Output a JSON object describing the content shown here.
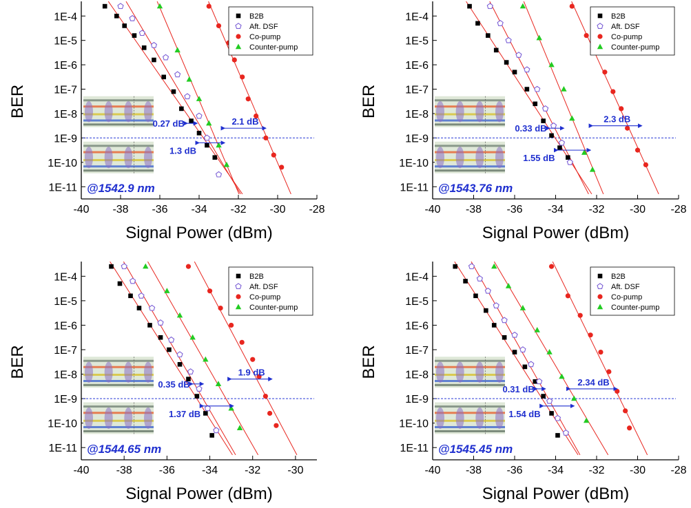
{
  "colors": {
    "b2b": "#000000",
    "dsf": "#7b5fd6",
    "co_pump": "#e8261f",
    "counter_pump": "#22cc22",
    "fit_line": "#e8261f",
    "threshold_line": "#2a3bd6",
    "annotation": "#1f2fcf"
  },
  "chart_data": [
    {
      "type": "scatter",
      "xlabel": "Signal Power (dBm)",
      "ylabel": "BER",
      "xlim": [
        -40,
        -28
      ],
      "x_ticks": [
        "-40",
        "-38",
        "-36",
        "-34",
        "-32",
        "-30",
        "-28"
      ],
      "y_log_scale": true,
      "ylim_log10": [
        -11.5,
        -3.4
      ],
      "y_ticks": [
        "1E-4",
        "1E-5",
        "1E-6",
        "1E-7",
        "1E-8",
        "1E-9",
        "1E-10",
        "1E-11"
      ],
      "threshold_ber": "1E-9",
      "wavelength_label": "@1542.9 nm",
      "legend_position": "top-right",
      "annotations": [
        {
          "text": "0.27 dB",
          "x1": -34.6,
          "x2": -34.1,
          "y": -8.4
        },
        {
          "text": "2.1 dB",
          "x1": -32.7,
          "x2": -30.6,
          "y": -8.6
        },
        {
          "text": "1.3 dB",
          "x1": -34.0,
          "x2": -32.7,
          "y": -9.2
        }
      ],
      "series": [
        {
          "name": "B2B",
          "marker": "square",
          "x": [
            -38.8,
            -38.2,
            -37.8,
            -37.3,
            -36.8,
            -36.3,
            -35.8,
            -35.3,
            -34.9,
            -34.4,
            -34.0,
            -33.6,
            -33.2
          ],
          "y": [
            -3.6,
            -4.0,
            -4.4,
            -4.8,
            -5.3,
            -5.8,
            -6.5,
            -7.1,
            -7.8,
            -8.3,
            -8.8,
            -9.3,
            -9.8
          ]
        },
        {
          "name": "Aft. DSF",
          "marker": "pentagon-open",
          "x": [
            -38.0,
            -37.4,
            -36.9,
            -36.3,
            -35.7,
            -35.1,
            -34.6,
            -34.0,
            -33.6,
            -33.0
          ],
          "y": [
            -3.6,
            -4.1,
            -4.7,
            -5.2,
            -5.7,
            -6.4,
            -7.3,
            -8.1,
            -9.0,
            -10.5
          ]
        },
        {
          "name": "Co-pump",
          "marker": "circle",
          "x": [
            -33.5,
            -33.0,
            -32.5,
            -32.2,
            -31.8,
            -31.5,
            -31.1,
            -30.6,
            -30.2,
            -29.8
          ],
          "y": [
            -3.6,
            -4.4,
            -5.1,
            -5.8,
            -6.5,
            -7.4,
            -8.1,
            -9.0,
            -9.7,
            -10.2
          ]
        },
        {
          "name": "Counter-pump",
          "marker": "triangle",
          "x": [
            -36.0,
            -35.1,
            -34.5,
            -34.0,
            -33.5,
            -33.0,
            -32.6
          ],
          "y": [
            -3.6,
            -5.4,
            -6.6,
            -7.4,
            -8.4,
            -9.3,
            -10.1
          ]
        }
      ]
    },
    {
      "type": "scatter",
      "xlabel": "Signal Power (dBm)",
      "ylabel": "BER",
      "xlim": [
        -40,
        -28
      ],
      "x_ticks": [
        "-40",
        "-38",
        "-36",
        "-34",
        "-32",
        "-30",
        "-28"
      ],
      "y_log_scale": true,
      "ylim_log10": [
        -11.5,
        -3.4
      ],
      "y_ticks": [
        "1E-4",
        "1E-5",
        "1E-6",
        "1E-7",
        "1E-8",
        "1E-9",
        "1E-10",
        "1E-11"
      ],
      "threshold_ber": "1E-9",
      "wavelength_label": "@1543.76 nm",
      "legend_position": "top-right",
      "annotations": [
        {
          "text": "0.33 dB",
          "x1": -34.3,
          "x2": -33.6,
          "y": -8.6
        },
        {
          "text": "2.3 dB",
          "x1": -32.2,
          "x2": -29.8,
          "y": -8.5
        },
        {
          "text": "1.55 dB",
          "x1": -33.9,
          "x2": -32.3,
          "y": -9.5
        }
      ],
      "series": [
        {
          "name": "B2B",
          "marker": "square",
          "x": [
            -38.2,
            -37.8,
            -37.3,
            -36.9,
            -36.4,
            -36.0,
            -35.4,
            -35.0,
            -34.6,
            -34.2,
            -33.8,
            -33.4
          ],
          "y": [
            -3.6,
            -4.3,
            -4.8,
            -5.4,
            -5.9,
            -6.3,
            -7.0,
            -7.6,
            -8.3,
            -8.9,
            -9.4,
            -9.8
          ]
        },
        {
          "name": "Aft. DSF",
          "marker": "pentagon-open",
          "x": [
            -37.2,
            -36.7,
            -36.3,
            -35.8,
            -35.4,
            -34.9,
            -34.5,
            -34.1,
            -33.7,
            -33.3
          ],
          "y": [
            -3.6,
            -4.3,
            -5.0,
            -5.6,
            -6.2,
            -7.0,
            -7.8,
            -8.5,
            -9.2,
            -10.0
          ]
        },
        {
          "name": "Co-pump",
          "marker": "circle",
          "x": [
            -33.2,
            -32.5,
            -32.0,
            -31.6,
            -31.2,
            -30.8,
            -30.5,
            -30.0,
            -29.6
          ],
          "y": [
            -3.6,
            -4.8,
            -5.5,
            -6.3,
            -7.1,
            -7.8,
            -8.6,
            -9.5,
            -10.1
          ]
        },
        {
          "name": "Counter-pump",
          "marker": "triangle",
          "x": [
            -35.6,
            -34.8,
            -34.2,
            -33.6,
            -33.2,
            -32.6,
            -32.2
          ],
          "y": [
            -3.6,
            -4.9,
            -6.0,
            -7.0,
            -8.2,
            -9.6,
            -10.3
          ]
        }
      ]
    },
    {
      "type": "scatter",
      "xlabel": "Signal Power (dBm)",
      "ylabel": "BER",
      "xlim": [
        -40,
        -29
      ],
      "x_ticks": [
        "-40",
        "-38",
        "-36",
        "-34",
        "-32",
        "-30"
      ],
      "y_log_scale": true,
      "ylim_log10": [
        -11.5,
        -3.4
      ],
      "y_ticks": [
        "1E-4",
        "1E-5",
        "1E-6",
        "1E-7",
        "1E-8",
        "1E-9",
        "1E-10",
        "1E-11"
      ],
      "threshold_ber": "1E-9",
      "wavelength_label": "@1544.65 nm",
      "legend_position": "top-right",
      "annotations": [
        {
          "text": "0.35 dB",
          "x1": -34.8,
          "x2": -34.3,
          "y": -8.4
        },
        {
          "text": "1.9 dB",
          "x1": -33.0,
          "x2": -31.1,
          "y": -8.2
        },
        {
          "text": "1.37 dB",
          "x1": -34.3,
          "x2": -32.9,
          "y": -9.3
        }
      ],
      "series": [
        {
          "name": "B2B",
          "marker": "square",
          "x": [
            -38.6,
            -38.2,
            -37.7,
            -37.3,
            -36.8,
            -36.3,
            -35.9,
            -35.4,
            -35.0,
            -34.6,
            -34.2,
            -33.9
          ],
          "y": [
            -3.6,
            -4.3,
            -4.8,
            -5.3,
            -6.0,
            -6.5,
            -7.0,
            -7.6,
            -8.2,
            -8.9,
            -9.6,
            -10.5
          ]
        },
        {
          "name": "Aft. DSF",
          "marker": "pentagon-open",
          "x": [
            -38.0,
            -37.6,
            -37.2,
            -36.7,
            -36.3,
            -35.8,
            -35.4,
            -34.9,
            -34.5,
            -34.1,
            -33.7
          ],
          "y": [
            -3.6,
            -4.2,
            -4.8,
            -5.3,
            -5.9,
            -6.6,
            -7.2,
            -7.9,
            -8.6,
            -9.4,
            -10.3
          ]
        },
        {
          "name": "Co-pump",
          "marker": "circle",
          "x": [
            -35.0,
            -34.0,
            -33.5,
            -33.0,
            -32.5,
            -32.0,
            -31.7,
            -31.4,
            -31.2,
            -30.9
          ],
          "y": [
            -3.6,
            -4.6,
            -5.3,
            -6.0,
            -6.7,
            -7.4,
            -8.1,
            -8.9,
            -9.6,
            -10.1
          ]
        },
        {
          "name": "Counter-pump",
          "marker": "triangle",
          "x": [
            -37.0,
            -36.0,
            -35.4,
            -34.8,
            -34.2,
            -33.6,
            -33.0,
            -32.6
          ],
          "y": [
            -3.6,
            -4.6,
            -5.6,
            -6.5,
            -7.4,
            -8.4,
            -9.4,
            -10.2
          ]
        }
      ]
    },
    {
      "type": "scatter",
      "xlabel": "Signal Power (dBm)",
      "ylabel": "BER",
      "xlim": [
        -40,
        -28
      ],
      "x_ticks": [
        "-40",
        "-38",
        "-36",
        "-34",
        "-32",
        "-30",
        "-28"
      ],
      "y_log_scale": true,
      "ylim_log10": [
        -11.5,
        -3.4
      ],
      "y_ticks": [
        "1E-4",
        "1E-5",
        "1E-6",
        "1E-7",
        "1E-8",
        "1E-9",
        "1E-10",
        "1E-11"
      ],
      "threshold_ber": "1E-9",
      "wavelength_label": "@1545.45 nm",
      "legend_position": "top-right",
      "annotations": [
        {
          "text": "0.31 dB",
          "x1": -34.9,
          "x2": -34.5,
          "y": -8.6
        },
        {
          "text": "2.34 dB",
          "x1": -33.3,
          "x2": -31.0,
          "y": -8.6
        },
        {
          "text": "1.54 dB",
          "x1": -34.6,
          "x2": -33.1,
          "y": -9.3
        }
      ],
      "series": [
        {
          "name": "B2B",
          "marker": "square",
          "x": [
            -38.9,
            -38.4,
            -37.9,
            -37.4,
            -37.0,
            -36.5,
            -36.0,
            -35.5,
            -35.0,
            -34.6,
            -34.2,
            -33.9
          ],
          "y": [
            -3.6,
            -4.2,
            -4.8,
            -5.4,
            -6.0,
            -6.5,
            -7.1,
            -7.7,
            -8.3,
            -8.9,
            -9.6,
            -10.5
          ]
        },
        {
          "name": "Aft. DSF",
          "marker": "pentagon-open",
          "x": [
            -38.1,
            -37.7,
            -37.3,
            -36.9,
            -36.5,
            -36.0,
            -35.6,
            -35.2,
            -34.8,
            -34.3,
            -33.9,
            -33.5
          ],
          "y": [
            -3.6,
            -4.1,
            -4.6,
            -5.2,
            -5.8,
            -6.4,
            -7.0,
            -7.6,
            -8.3,
            -9.1,
            -9.8,
            -10.4
          ]
        },
        {
          "name": "Co-pump",
          "marker": "circle",
          "x": [
            -34.2,
            -33.4,
            -32.8,
            -32.3,
            -31.8,
            -31.4,
            -31.0,
            -30.6,
            -30.4
          ],
          "y": [
            -3.6,
            -4.8,
            -5.6,
            -6.4,
            -7.1,
            -7.9,
            -8.7,
            -9.5,
            -10.2
          ]
        },
        {
          "name": "Counter-pump",
          "marker": "triangle",
          "x": [
            -37.0,
            -36.3,
            -35.6,
            -34.9,
            -34.3,
            -33.7,
            -33.1,
            -32.5
          ],
          "y": [
            -3.6,
            -4.4,
            -5.3,
            -6.2,
            -7.1,
            -8.1,
            -9.0,
            -9.9
          ]
        }
      ]
    }
  ]
}
